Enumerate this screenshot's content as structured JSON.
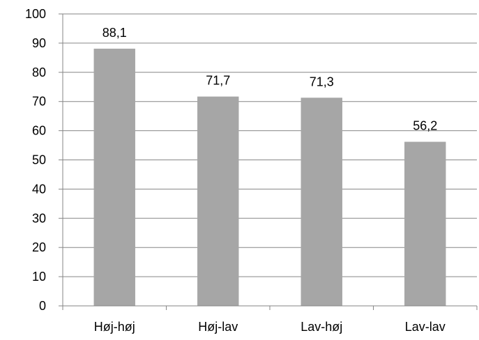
{
  "chart_data": {
    "type": "bar",
    "categories": [
      "Høj-høj",
      "Høj-lav",
      "Lav-høj",
      "Lav-lav"
    ],
    "values": [
      88.1,
      71.7,
      71.3,
      56.2
    ],
    "value_labels": [
      "88,1",
      "71,7",
      "71,3",
      "56,2"
    ],
    "yticks": [
      "0",
      "10",
      "20",
      "30",
      "40",
      "50",
      "60",
      "70",
      "80",
      "90",
      "100"
    ],
    "title": "",
    "xlabel": "",
    "ylabel": "",
    "ylim": [
      0,
      100
    ],
    "grid": true,
    "legend": "none",
    "colors": {
      "bar": "#a6a6a6",
      "grid": "#868686",
      "axis": "#868686",
      "text": "#000000"
    }
  }
}
